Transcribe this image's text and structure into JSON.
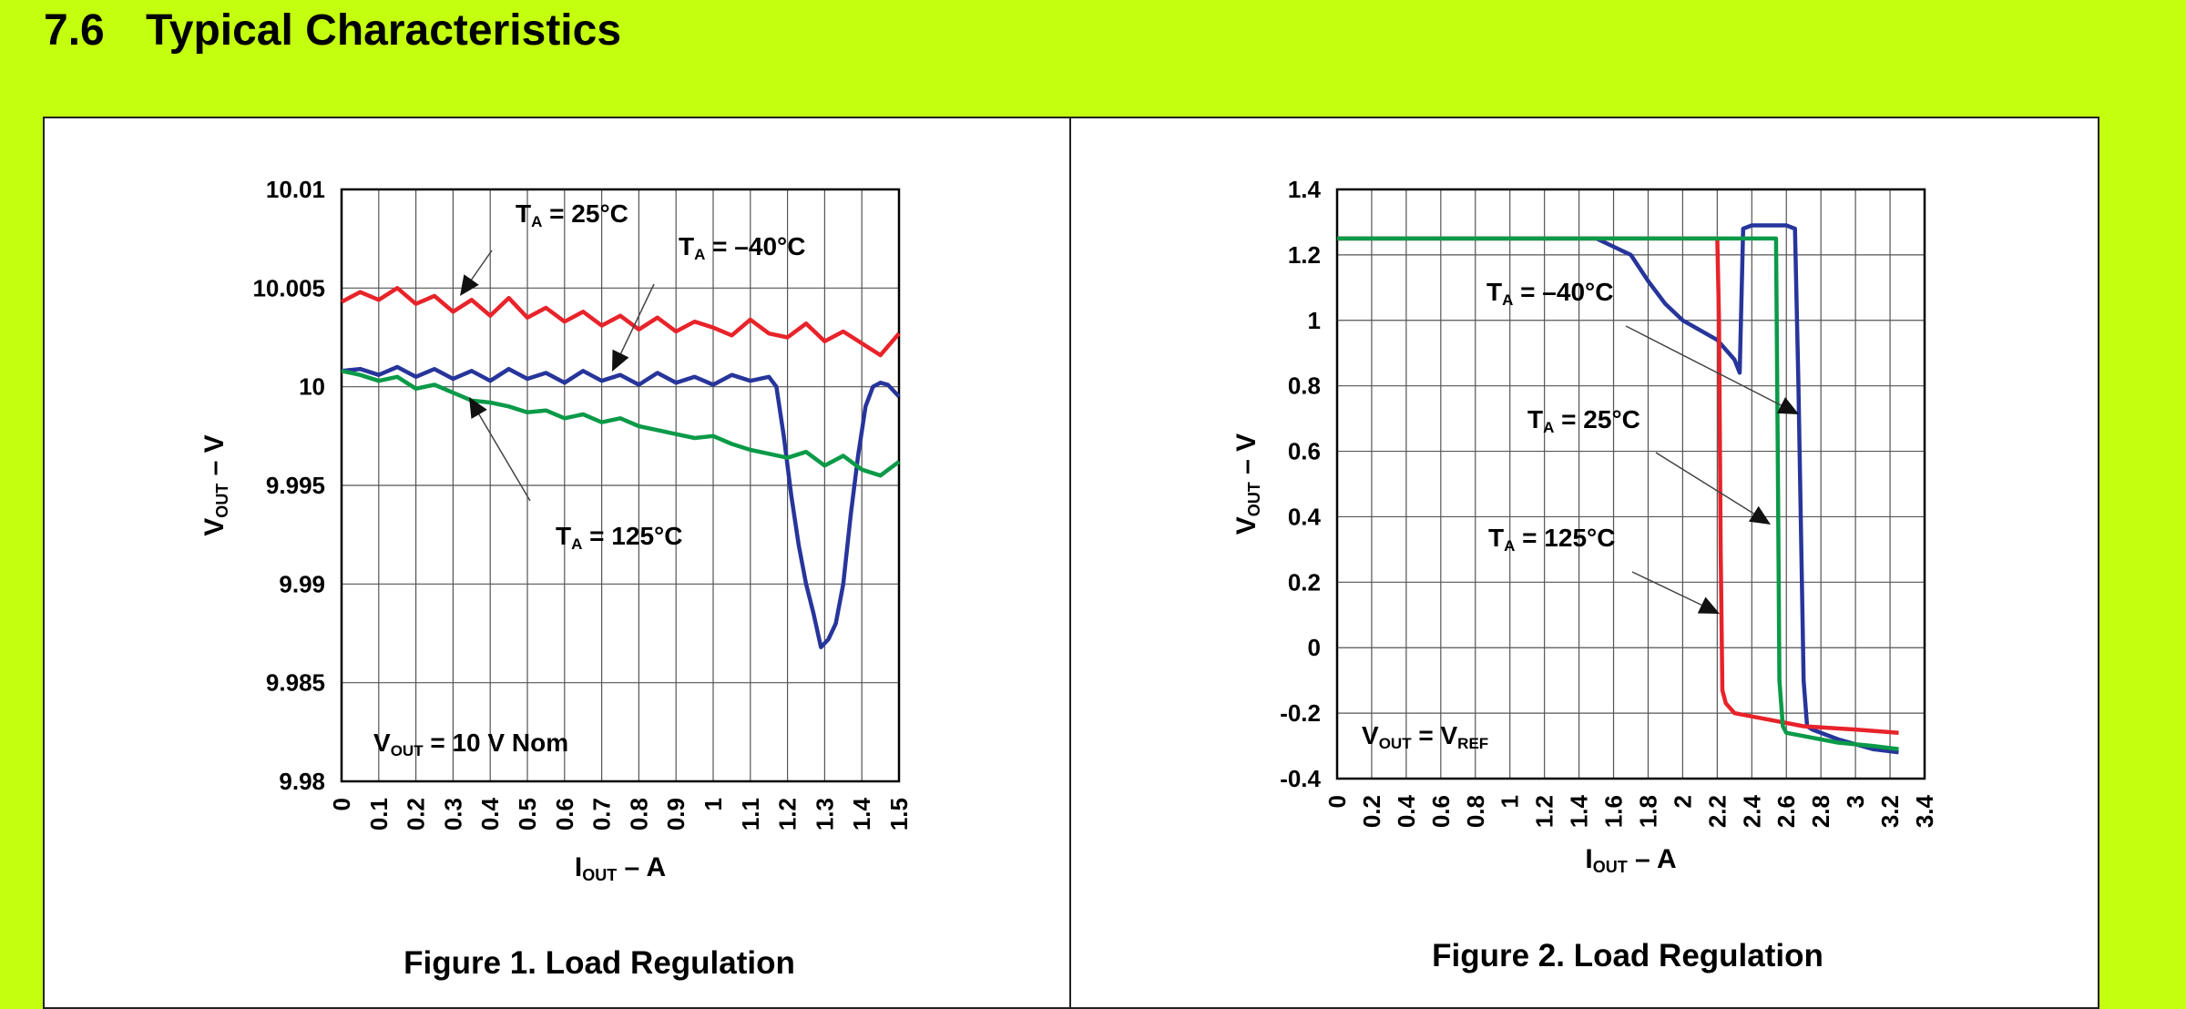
{
  "section": {
    "number": "7.6",
    "title": "Typical Characteristics"
  },
  "colors": {
    "page_background": "#c4ff10",
    "red": "#e8232a",
    "blue": "#27359b",
    "green": "#0b9a48",
    "grid": "#555555"
  },
  "chart_data": [
    {
      "type": "line",
      "caption": "Figure 1. Load Regulation",
      "xlabel": {
        "main": "I",
        "sub": "OUT",
        "rest": " – A"
      },
      "ylabel": {
        "main": "V",
        "sub": "OUT",
        "rest": " – V"
      },
      "xlim": [
        0,
        1.5
      ],
      "ylim": [
        9.98,
        10.01
      ],
      "x_ticks": [
        "0",
        "0.1",
        "0.2",
        "0.3",
        "0.4",
        "0.5",
        "0.6",
        "0.7",
        "0.8",
        "0.9",
        "1",
        "1.1",
        "1.2",
        "1.3",
        "1.4",
        "1.5"
      ],
      "y_ticks": [
        "10.01",
        "10.005",
        "10",
        "9.995",
        "9.99",
        "9.985",
        "9.98"
      ],
      "grid": true,
      "note": {
        "main": "V",
        "sub": "OUT",
        "rest": " = 10 V Nom"
      },
      "annotations": [
        {
          "main": "T",
          "sub": "A",
          "rest": " = 25°C"
        },
        {
          "main": "T",
          "sub": "A",
          "rest": " = –40°C"
        },
        {
          "main": "T",
          "sub": "A",
          "rest": " = 125°C"
        }
      ],
      "series": [
        {
          "color": "#e8232a",
          "x": [
            0,
            0.05,
            0.1,
            0.15,
            0.2,
            0.25,
            0.3,
            0.35,
            0.4,
            0.45,
            0.5,
            0.55,
            0.6,
            0.65,
            0.7,
            0.75,
            0.8,
            0.85,
            0.9,
            0.95,
            1.0,
            1.05,
            1.1,
            1.15,
            1.2,
            1.25,
            1.3,
            1.35,
            1.4,
            1.45,
            1.5
          ],
          "y": [
            10.0043,
            10.0048,
            10.0044,
            10.005,
            10.0042,
            10.0046,
            10.0038,
            10.0044,
            10.0036,
            10.0045,
            10.0035,
            10.004,
            10.0033,
            10.0038,
            10.0031,
            10.0036,
            10.0029,
            10.0035,
            10.0028,
            10.0033,
            10.003,
            10.0026,
            10.0034,
            10.0027,
            10.0025,
            10.0032,
            10.0023,
            10.0028,
            10.0022,
            10.0016,
            10.0027
          ]
        },
        {
          "color": "#27359b",
          "x": [
            0,
            0.05,
            0.1,
            0.15,
            0.2,
            0.25,
            0.3,
            0.35,
            0.4,
            0.45,
            0.5,
            0.55,
            0.6,
            0.65,
            0.7,
            0.75,
            0.8,
            0.85,
            0.9,
            0.95,
            1.0,
            1.05,
            1.1,
            1.15,
            1.17,
            1.19,
            1.21,
            1.23,
            1.25,
            1.27,
            1.29,
            1.31,
            1.33,
            1.35,
            1.37,
            1.39,
            1.41,
            1.43,
            1.45,
            1.47,
            1.5
          ],
          "y": [
            10.0008,
            10.0009,
            10.0006,
            10.001,
            10.0005,
            10.0009,
            10.0004,
            10.0008,
            10.0003,
            10.0009,
            10.0004,
            10.0007,
            10.0002,
            10.0008,
            10.0003,
            10.0006,
            10.0001,
            10.0007,
            10.0002,
            10.0005,
            10.0001,
            10.0006,
            10.0003,
            10.0005,
            10.0,
            9.9975,
            9.9945,
            9.992,
            9.99,
            9.9885,
            9.9868,
            9.9872,
            9.988,
            9.99,
            9.9935,
            9.9965,
            9.999,
            10.0,
            10.0002,
            10.0001,
            9.9995
          ]
        },
        {
          "color": "#0b9a48",
          "x": [
            0,
            0.05,
            0.1,
            0.15,
            0.2,
            0.25,
            0.3,
            0.35,
            0.4,
            0.45,
            0.5,
            0.55,
            0.6,
            0.65,
            0.7,
            0.75,
            0.8,
            0.85,
            0.9,
            0.95,
            1.0,
            1.05,
            1.1,
            1.15,
            1.2,
            1.25,
            1.3,
            1.35,
            1.4,
            1.45,
            1.5
          ],
          "y": [
            10.0008,
            10.0006,
            10.0003,
            10.0005,
            9.9999,
            10.0001,
            9.9997,
            9.9993,
            9.9992,
            9.999,
            9.9987,
            9.9988,
            9.9984,
            9.9986,
            9.9982,
            9.9984,
            9.998,
            9.9978,
            9.9976,
            9.9974,
            9.9975,
            9.9971,
            9.9968,
            9.9966,
            9.9964,
            9.9967,
            9.996,
            9.9965,
            9.9958,
            9.9955,
            9.9962
          ]
        }
      ]
    },
    {
      "type": "line",
      "caption": "Figure 2. Load Regulation",
      "xlabel": {
        "main": "I",
        "sub": "OUT",
        "rest": " – A"
      },
      "ylabel": {
        "main": "V",
        "sub": "OUT",
        "rest": " – V"
      },
      "xlim": [
        0,
        3.4
      ],
      "ylim": [
        -0.4,
        1.4
      ],
      "x_ticks": [
        "0",
        "0.2",
        "0.4",
        "0.6",
        "0.8",
        "1",
        "1.2",
        "1.4",
        "1.6",
        "1.8",
        "2",
        "2.2",
        "2.4",
        "2.6",
        "2.8",
        "3",
        "3.2",
        "3.4"
      ],
      "y_ticks": [
        "1.4",
        "1.2",
        "1",
        "0.8",
        "0.6",
        "0.4",
        "0.2",
        "0",
        "-0.2",
        "-0.4"
      ],
      "grid": true,
      "note": {
        "main": "V",
        "sub": "OUT",
        "rest": " = V",
        "sub2": "REF"
      },
      "annotations": [
        {
          "main": "T",
          "sub": "A",
          "rest": " = –40°C"
        },
        {
          "main": "T",
          "sub": "A",
          "rest": " = 25°C"
        },
        {
          "main": "T",
          "sub": "A",
          "rest": " = 125°C"
        }
      ],
      "series": [
        {
          "color": "#27359b",
          "x": [
            0,
            0.5,
            1.0,
            1.5,
            1.7,
            1.8,
            1.9,
            2.0,
            2.1,
            2.2,
            2.3,
            2.33,
            2.35,
            2.4,
            2.5,
            2.6,
            2.65,
            2.67,
            2.7,
            2.72,
            2.75,
            2.9,
            3.1,
            3.25
          ],
          "y": [
            1.25,
            1.25,
            1.25,
            1.25,
            1.2,
            1.12,
            1.05,
            1.0,
            0.97,
            0.94,
            0.88,
            0.84,
            1.28,
            1.29,
            1.29,
            1.29,
            1.28,
            0.8,
            -0.1,
            -0.24,
            -0.25,
            -0.28,
            -0.31,
            -0.32
          ]
        },
        {
          "color": "#e8232a",
          "x": [
            0,
            0.5,
            1.0,
            1.5,
            2.0,
            2.2,
            2.21,
            2.22,
            2.23,
            2.25,
            2.3,
            2.5,
            2.7,
            3.0,
            3.25
          ],
          "y": [
            1.25,
            1.25,
            1.25,
            1.25,
            1.25,
            1.25,
            1.0,
            0.3,
            -0.13,
            -0.17,
            -0.2,
            -0.22,
            -0.24,
            -0.25,
            -0.26
          ]
        },
        {
          "color": "#0b9a48",
          "x": [
            0,
            0.5,
            1.0,
            1.5,
            2.0,
            2.2,
            2.5,
            2.54,
            2.55,
            2.56,
            2.58,
            2.6,
            2.7,
            2.9,
            3.1,
            3.25
          ],
          "y": [
            1.25,
            1.25,
            1.25,
            1.25,
            1.25,
            1.25,
            1.25,
            1.25,
            0.6,
            -0.1,
            -0.24,
            -0.26,
            -0.27,
            -0.29,
            -0.3,
            -0.31
          ]
        }
      ]
    }
  ]
}
